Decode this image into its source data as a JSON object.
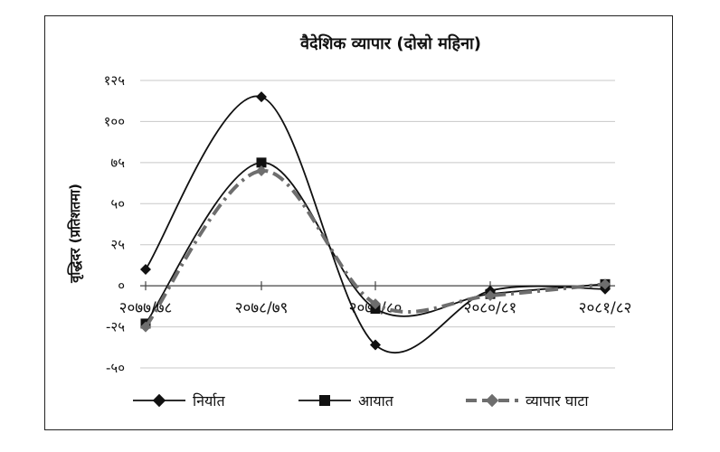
{
  "chart_data": {
    "type": "line",
    "title": "वैदेशिक व्यापार (दोस्रो महिना)",
    "ylabel": "वृद्धिदर (प्रतिशतमा)",
    "xlabel": "",
    "categories": [
      "२०७७/७८",
      "२०७८/७९",
      "२०७९/८०",
      "२०८०/८१",
      "२०८१/८२"
    ],
    "y_ticks": [
      {
        "value": 125,
        "label": "१२५"
      },
      {
        "value": 100,
        "label": "१००"
      },
      {
        "value": 75,
        "label": "७५"
      },
      {
        "value": 50,
        "label": "५०"
      },
      {
        "value": 25,
        "label": "२५"
      },
      {
        "value": 0,
        "label": "०"
      },
      {
        "value": -25,
        "label": "-२५"
      },
      {
        "value": -50,
        "label": "-५०"
      }
    ],
    "ylim": [
      -50,
      125
    ],
    "grid": "horizontal",
    "legend_position": "bottom",
    "series": [
      {
        "name": "निर्यात",
        "values": [
          10,
          115,
          -36,
          -3,
          -2
        ],
        "color": "#111111",
        "marker": "diamond",
        "dash": "solid"
      },
      {
        "name": "आयात",
        "values": [
          -23,
          75,
          -14,
          -5,
          1
        ],
        "color": "#111111",
        "marker": "square",
        "dash": "solid"
      },
      {
        "name": "व्यापार घाटा",
        "values": [
          -25,
          70,
          -11,
          -6,
          1
        ],
        "color": "#6e6e6e",
        "marker": "diamond",
        "dash": "dashed"
      }
    ]
  }
}
